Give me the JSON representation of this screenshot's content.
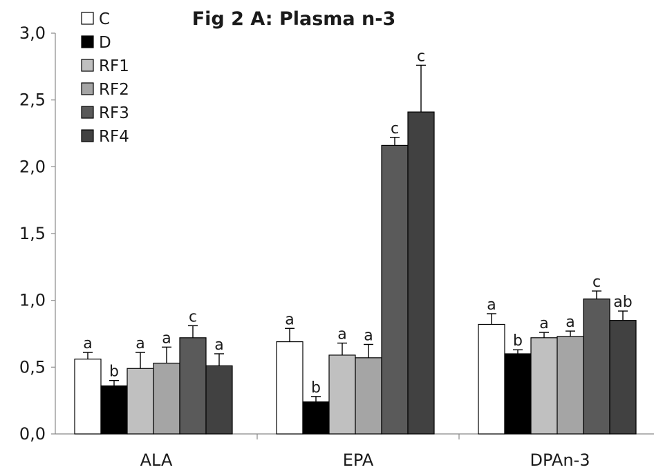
{
  "chart_data": {
    "type": "bar",
    "title": "Fig 2 A: Plasma n-3",
    "xlabel": "",
    "ylabel": "",
    "ylim": [
      0,
      3.0
    ],
    "yticks": [
      "0,0",
      "0,5",
      "1,0",
      "1,5",
      "2,0",
      "2,5",
      "3,0"
    ],
    "ytick_values": [
      0,
      0.5,
      1.0,
      1.5,
      2.0,
      2.5,
      3.0
    ],
    "categories": [
      "ALA",
      "EPA",
      "DPAn-3"
    ],
    "legend_position": "top-left",
    "grid": false,
    "series": [
      {
        "name": "C",
        "color": "#ffffff",
        "values": [
          0.56,
          0.69,
          0.82
        ],
        "errors": [
          0.05,
          0.1,
          0.08
        ],
        "labels": [
          "a",
          "a",
          "a"
        ]
      },
      {
        "name": "D",
        "color": "#000000",
        "values": [
          0.36,
          0.24,
          0.6
        ],
        "errors": [
          0.04,
          0.04,
          0.03
        ],
        "labels": [
          "b",
          "b",
          "b"
        ]
      },
      {
        "name": "RF1",
        "color": "#c0c0c0",
        "values": [
          0.49,
          0.59,
          0.72
        ],
        "errors": [
          0.12,
          0.09,
          0.04
        ],
        "labels": [
          "a",
          "a",
          "a"
        ]
      },
      {
        "name": "RF2",
        "color": "#a5a5a5",
        "values": [
          0.53,
          0.57,
          0.73
        ],
        "errors": [
          0.12,
          0.1,
          0.04
        ],
        "labels": [
          "a",
          "a",
          "a"
        ]
      },
      {
        "name": "RF3",
        "color": "#5a5a5a",
        "values": [
          0.72,
          2.16,
          1.01
        ],
        "errors": [
          0.09,
          0.06,
          0.06
        ],
        "labels": [
          "c",
          "c",
          "c"
        ]
      },
      {
        "name": "RF4",
        "color": "#414141",
        "values": [
          0.51,
          2.41,
          0.85
        ],
        "errors": [
          0.09,
          0.35,
          0.07
        ],
        "labels": [
          "a",
          "c",
          "ab"
        ]
      }
    ]
  }
}
